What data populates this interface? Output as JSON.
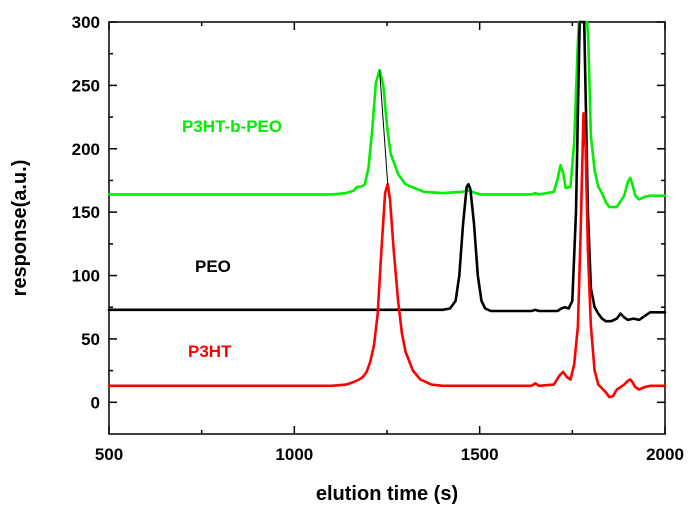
{
  "chart_data": {
    "type": "line",
    "xlabel": "elution time (s)",
    "ylabel": "response(a.u.)",
    "xlim": [
      500,
      2000
    ],
    "ylim": [
      -25,
      300
    ],
    "x_ticks": [
      500,
      1000,
      1500,
      2000
    ],
    "y_ticks": [
      0,
      50,
      100,
      150,
      200,
      250,
      300
    ],
    "x_tick_labels": [
      "500",
      "1000",
      "1500",
      "2000"
    ],
    "y_tick_labels": [
      "0",
      "50",
      "100",
      "150",
      "200",
      "250",
      "300"
    ],
    "grid": false,
    "series": [
      {
        "name": "P3HT-b-PEO",
        "color": "#00ee00",
        "points": [
          [
            500,
            164
          ],
          [
            1100,
            164
          ],
          [
            1140,
            165
          ],
          [
            1160,
            167
          ],
          [
            1170,
            170
          ],
          [
            1180,
            170
          ],
          [
            1190,
            172
          ],
          [
            1200,
            185
          ],
          [
            1210,
            215
          ],
          [
            1220,
            252
          ],
          [
            1230,
            262
          ],
          [
            1240,
            250
          ],
          [
            1250,
            218
          ],
          [
            1260,
            196
          ],
          [
            1280,
            180
          ],
          [
            1300,
            172
          ],
          [
            1350,
            166
          ],
          [
            1400,
            165
          ],
          [
            1450,
            166
          ],
          [
            1470,
            167
          ],
          [
            1480,
            166
          ],
          [
            1500,
            164
          ],
          [
            1640,
            164
          ],
          [
            1650,
            165
          ],
          [
            1660,
            164
          ],
          [
            1700,
            166
          ],
          [
            1710,
            176
          ],
          [
            1718,
            187
          ],
          [
            1726,
            180
          ],
          [
            1732,
            169
          ],
          [
            1745,
            170
          ],
          [
            1755,
            205
          ],
          [
            1765,
            285
          ],
          [
            1768,
            300
          ],
          [
            1790,
            300
          ],
          [
            1793,
            285
          ],
          [
            1800,
            210
          ],
          [
            1810,
            183
          ],
          [
            1820,
            170
          ],
          [
            1830,
            165
          ],
          [
            1840,
            158
          ],
          [
            1850,
            154
          ],
          [
            1870,
            154
          ],
          [
            1890,
            163
          ],
          [
            1900,
            174
          ],
          [
            1906,
            177
          ],
          [
            1912,
            172
          ],
          [
            1920,
            163
          ],
          [
            1930,
            160
          ],
          [
            1945,
            162
          ],
          [
            1960,
            163
          ],
          [
            2000,
            163
          ]
        ]
      },
      {
        "name": "PEO",
        "color": "#000000",
        "points": [
          [
            500,
            73
          ],
          [
            1400,
            73
          ],
          [
            1420,
            74
          ],
          [
            1435,
            80
          ],
          [
            1445,
            100
          ],
          [
            1455,
            140
          ],
          [
            1465,
            170
          ],
          [
            1470,
            172
          ],
          [
            1475,
            168
          ],
          [
            1485,
            140
          ],
          [
            1495,
            100
          ],
          [
            1505,
            80
          ],
          [
            1515,
            74
          ],
          [
            1530,
            72
          ],
          [
            1640,
            72
          ],
          [
            1650,
            73
          ],
          [
            1660,
            72
          ],
          [
            1710,
            72
          ],
          [
            1720,
            74
          ],
          [
            1730,
            75
          ],
          [
            1740,
            74
          ],
          [
            1750,
            80
          ],
          [
            1760,
            150
          ],
          [
            1765,
            230
          ],
          [
            1770,
            300
          ],
          [
            1782,
            300
          ],
          [
            1786,
            240
          ],
          [
            1792,
            150
          ],
          [
            1800,
            90
          ],
          [
            1810,
            75
          ],
          [
            1820,
            70
          ],
          [
            1830,
            66
          ],
          [
            1840,
            64
          ],
          [
            1855,
            64
          ],
          [
            1870,
            66
          ],
          [
            1880,
            70
          ],
          [
            1890,
            67
          ],
          [
            1900,
            65
          ],
          [
            1915,
            66
          ],
          [
            1930,
            65
          ],
          [
            1945,
            68
          ],
          [
            1960,
            71
          ],
          [
            2000,
            71
          ]
        ]
      },
      {
        "name": "P3HT",
        "color": "#ff0000",
        "points": [
          [
            500,
            13
          ],
          [
            1100,
            13
          ],
          [
            1140,
            14
          ],
          [
            1160,
            16
          ],
          [
            1175,
            18
          ],
          [
            1185,
            20
          ],
          [
            1195,
            24
          ],
          [
            1205,
            32
          ],
          [
            1215,
            45
          ],
          [
            1225,
            70
          ],
          [
            1235,
            120
          ],
          [
            1245,
            165
          ],
          [
            1252,
            172
          ],
          [
            1258,
            160
          ],
          [
            1268,
            120
          ],
          [
            1280,
            80
          ],
          [
            1290,
            55
          ],
          [
            1300,
            40
          ],
          [
            1320,
            25
          ],
          [
            1340,
            18
          ],
          [
            1370,
            14
          ],
          [
            1400,
            13
          ],
          [
            1640,
            13
          ],
          [
            1650,
            15
          ],
          [
            1660,
            13
          ],
          [
            1700,
            14
          ],
          [
            1715,
            21
          ],
          [
            1725,
            24
          ],
          [
            1735,
            20
          ],
          [
            1745,
            18
          ],
          [
            1755,
            30
          ],
          [
            1765,
            60
          ],
          [
            1772,
            130
          ],
          [
            1780,
            228
          ],
          [
            1786,
            200
          ],
          [
            1792,
            120
          ],
          [
            1800,
            60
          ],
          [
            1810,
            25
          ],
          [
            1820,
            14
          ],
          [
            1830,
            11
          ],
          [
            1840,
            8
          ],
          [
            1850,
            4
          ],
          [
            1860,
            5
          ],
          [
            1870,
            10
          ],
          [
            1880,
            12
          ],
          [
            1890,
            14
          ],
          [
            1900,
            17
          ],
          [
            1906,
            18
          ],
          [
            1912,
            16
          ],
          [
            1920,
            12
          ],
          [
            1930,
            10
          ],
          [
            1945,
            12
          ],
          [
            1960,
            13
          ],
          [
            2000,
            13
          ]
        ]
      }
    ],
    "annotations": [
      {
        "text": "P3HT-b-PEO",
        "color": "#00ee00"
      },
      {
        "text": "PEO",
        "color": "#000000"
      },
      {
        "text": "P3HT",
        "color": "#ff0000"
      }
    ],
    "connector": {
      "color": "#000000",
      "from": [
        1230,
        262
      ],
      "to": [
        1252,
        172
      ]
    }
  }
}
